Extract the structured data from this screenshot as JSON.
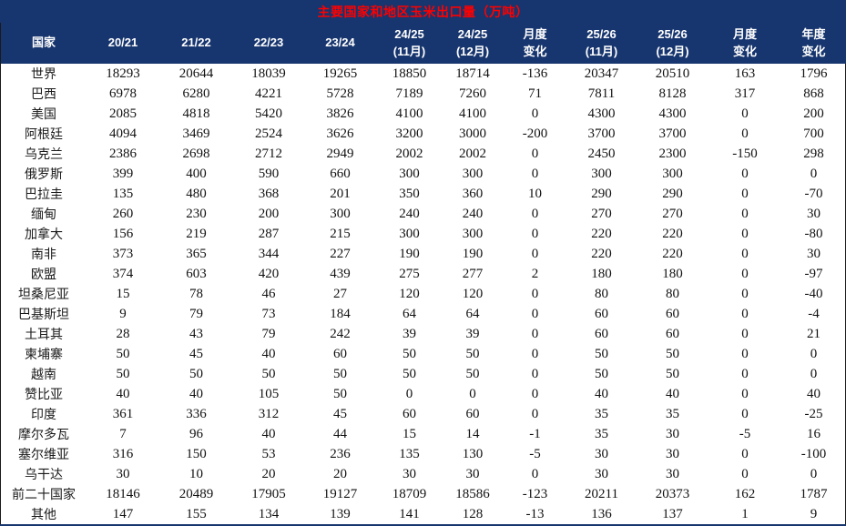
{
  "title": "主要国家和地区玉米出口量（万吨）",
  "colors": {
    "header_bg": "#17356E",
    "title_text": "#FF0000",
    "positive_change": "#FF0000",
    "negative_change": "#00B050",
    "body_text": "#111111"
  },
  "chart_data": {
    "type": "table",
    "title": "主要国家和地区玉米出口量（万吨）",
    "columns": [
      {
        "line1": "国家",
        "line2": ""
      },
      {
        "line1": "20/21",
        "line2": ""
      },
      {
        "line1": "21/22",
        "line2": ""
      },
      {
        "line1": "22/23",
        "line2": ""
      },
      {
        "line1": "23/24",
        "line2": ""
      },
      {
        "line1": "24/25",
        "line2": "(11月)"
      },
      {
        "line1": "24/25",
        "line2": "(12月)"
      },
      {
        "line1": "月度",
        "line2": "变化"
      },
      {
        "line1": "25/26",
        "line2": "(11月)"
      },
      {
        "line1": "25/26",
        "line2": "(12月)"
      },
      {
        "line1": "月度",
        "line2": "变化"
      },
      {
        "line1": "年度",
        "line2": "变化"
      }
    ],
    "change_column_value_indices": [
      6,
      9,
      10
    ],
    "rows": [
      {
        "country": "世界",
        "values": [
          18293,
          20644,
          18039,
          19265,
          18850,
          18714,
          -136,
          20347,
          20510,
          163,
          1796
        ]
      },
      {
        "country": "巴西",
        "values": [
          6978,
          6280,
          4221,
          5728,
          7189,
          7260,
          71,
          7811,
          8128,
          317,
          868
        ]
      },
      {
        "country": "美国",
        "values": [
          2085,
          4818,
          5420,
          3826,
          4100,
          4100,
          0,
          4300,
          4300,
          0,
          200
        ]
      },
      {
        "country": "阿根廷",
        "values": [
          4094,
          3469,
          2524,
          3626,
          3200,
          3000,
          -200,
          3700,
          3700,
          0,
          700
        ]
      },
      {
        "country": "乌克兰",
        "values": [
          2386,
          2698,
          2712,
          2949,
          2002,
          2002,
          0,
          2450,
          2300,
          -150,
          298
        ]
      },
      {
        "country": "俄罗斯",
        "values": [
          399,
          400,
          590,
          660,
          300,
          300,
          0,
          300,
          300,
          0,
          0
        ]
      },
      {
        "country": "巴拉圭",
        "values": [
          135,
          480,
          368,
          201,
          350,
          360,
          10,
          290,
          290,
          0,
          -70
        ]
      },
      {
        "country": "缅甸",
        "values": [
          260,
          230,
          200,
          300,
          240,
          240,
          0,
          270,
          270,
          0,
          30
        ]
      },
      {
        "country": "加拿大",
        "values": [
          156,
          219,
          287,
          215,
          300,
          300,
          0,
          220,
          220,
          0,
          -80
        ]
      },
      {
        "country": "南非",
        "values": [
          373,
          365,
          344,
          227,
          190,
          190,
          0,
          220,
          220,
          0,
          30
        ]
      },
      {
        "country": "欧盟",
        "values": [
          374,
          603,
          420,
          439,
          275,
          277,
          2,
          180,
          180,
          0,
          -97
        ]
      },
      {
        "country": "坦桑尼亚",
        "values": [
          15,
          78,
          46,
          27,
          120,
          120,
          0,
          80,
          80,
          0,
          -40
        ]
      },
      {
        "country": "巴基斯坦",
        "values": [
          9,
          79,
          73,
          184,
          64,
          64,
          0,
          60,
          60,
          0,
          -4
        ]
      },
      {
        "country": "土耳其",
        "values": [
          28,
          43,
          79,
          242,
          39,
          39,
          0,
          60,
          60,
          0,
          21
        ]
      },
      {
        "country": "柬埔寨",
        "values": [
          50,
          45,
          40,
          60,
          50,
          50,
          0,
          50,
          50,
          0,
          0
        ]
      },
      {
        "country": "越南",
        "values": [
          50,
          50,
          50,
          50,
          50,
          50,
          0,
          50,
          50,
          0,
          0
        ]
      },
      {
        "country": "赞比亚",
        "values": [
          40,
          40,
          105,
          50,
          0,
          0,
          0,
          40,
          40,
          0,
          40
        ]
      },
      {
        "country": "印度",
        "values": [
          361,
          336,
          312,
          45,
          60,
          60,
          0,
          35,
          35,
          0,
          -25
        ]
      },
      {
        "country": "摩尔多瓦",
        "values": [
          7,
          96,
          40,
          44,
          15,
          14,
          -1,
          35,
          30,
          -5,
          16
        ]
      },
      {
        "country": "塞尔维亚",
        "values": [
          316,
          150,
          53,
          236,
          135,
          130,
          -5,
          30,
          30,
          0,
          -100
        ]
      },
      {
        "country": "乌干达",
        "values": [
          30,
          10,
          20,
          20,
          30,
          30,
          0,
          30,
          30,
          0,
          0
        ]
      },
      {
        "country": "前二十国家",
        "values": [
          18146,
          20489,
          17905,
          19127,
          18709,
          18586,
          -123,
          20211,
          20373,
          162,
          1787
        ]
      },
      {
        "country": "其他",
        "values": [
          147,
          155,
          134,
          139,
          141,
          128,
          -13,
          136,
          137,
          1,
          9
        ]
      }
    ]
  }
}
